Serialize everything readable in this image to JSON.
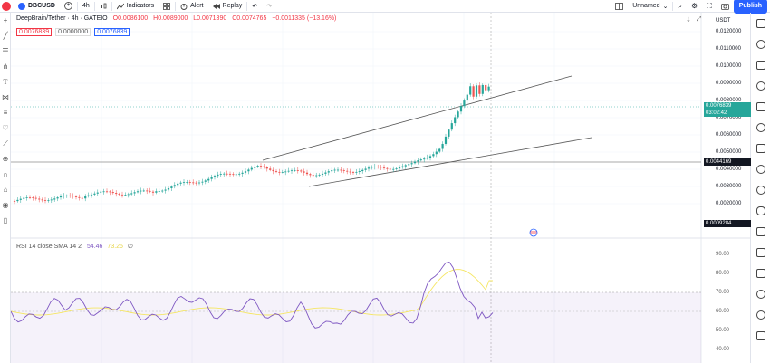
{
  "topbar": {
    "avatar_badge": "11",
    "symbol": "DBCUSD",
    "add_icon": "+",
    "interval": "4h",
    "indicators_label": "Indicators",
    "alert_label": "Alert",
    "replay_label": "Replay",
    "layout_name": "Unnamed",
    "publish_label": "Publish"
  },
  "legend": {
    "title": "DeepBrain/Tether · 4h · GATEIO",
    "open": "O0.0086100",
    "high": "H0.0089000",
    "low": "L0.0071390",
    "close": "C0.0074765",
    "change": "−0.0011335 (−13.16%)",
    "box1": "0.0076839",
    "box2": "0.0000000",
    "box3": "0.0076839"
  },
  "price_axis": {
    "currency": "USDT",
    "labels": [
      "0.0120000",
      "0.0110000",
      "0.0100000",
      "0.0090000",
      "0.0080000",
      "0.0070000",
      "0.0060000",
      "0.0050000",
      "0.0040000",
      "0.0030000",
      "0.0020000"
    ],
    "current_price": "0.0076839",
    "countdown": "03:02:42",
    "crosshair_price": "0.0044169",
    "bottom_price": "0.0009284"
  },
  "rsi": {
    "legend": "RSI 14 close SMA 14 2",
    "value1": "54.46",
    "value2": "73.25",
    "eye_icon": "∅",
    "labels": [
      "90.00",
      "80.00",
      "70.00",
      "60.00",
      "50.00",
      "40.00"
    ]
  },
  "colors": {
    "up": "#26a69a",
    "down": "#ef5350",
    "rsi_line": "#7e57c2",
    "rsi_ma": "#f5e663",
    "accent": "#2962ff"
  }
}
